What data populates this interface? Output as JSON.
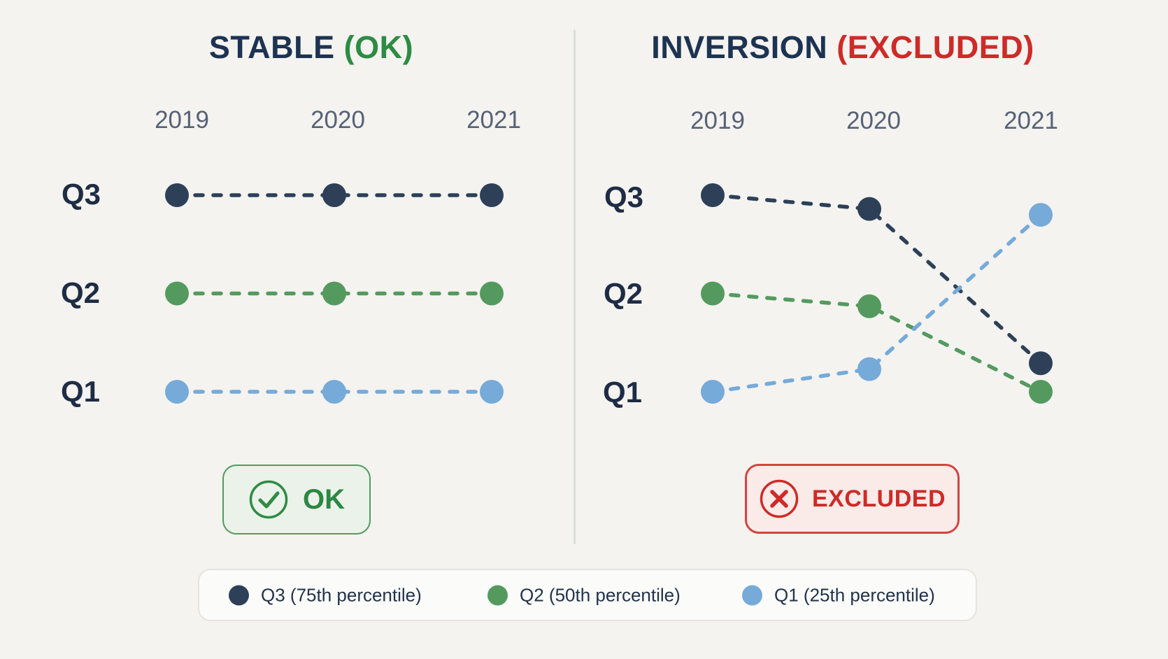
{
  "page": {
    "background": "#f4f3f0",
    "divider_color": "#d9ddd9"
  },
  "panels": [
    {
      "title_main": "STABLE",
      "title_suffix": "(OK)",
      "suffix_color": "#2e8b43",
      "years": [
        "2019",
        "2020",
        "2021"
      ],
      "row_labels": [
        "Q3",
        "Q2",
        "Q1"
      ],
      "badge": {
        "label": "OK",
        "icon": "check-circle-icon",
        "icon_color": "#2f8b43",
        "text_color": "#2c8742",
        "bg": "#eaf2ea",
        "border": "#539a5e"
      }
    },
    {
      "title_main": "INVERSION",
      "title_suffix": "(EXCLUDED)",
      "suffix_color": "#ce2b28",
      "years": [
        "2019",
        "2020",
        "2021"
      ],
      "row_labels": [
        "Q3",
        "Q2",
        "Q1"
      ],
      "badge": {
        "label": "EXCLUDED",
        "icon": "x-circle-icon",
        "icon_color": "#ce2b28",
        "text_color": "#ce2b28",
        "bg": "#faeae8",
        "border": "#d24540"
      }
    }
  ],
  "legend": {
    "items": [
      {
        "label": "Q3 (75th percentile)",
        "color": "#2d4058"
      },
      {
        "label": "Q2 (50th percentile)",
        "color": "#549a5e"
      },
      {
        "label": "Q1 (25th percentile)",
        "color": "#76aad8"
      }
    ]
  },
  "chart_data": [
    {
      "type": "line",
      "title": "STABLE (OK)",
      "x": [
        "2019",
        "2020",
        "2021"
      ],
      "y_categories": [
        "Q1",
        "Q2",
        "Q3"
      ],
      "line_style": "dashed",
      "marker": "circle",
      "legend_position": "bottom",
      "annotation": "OK",
      "series": [
        {
          "name": "Q3 (75th percentile)",
          "color": "#2d4058",
          "levels": [
            3,
            3,
            3
          ]
        },
        {
          "name": "Q2 (50th percentile)",
          "color": "#549a5e",
          "levels": [
            2,
            2,
            2
          ]
        },
        {
          "name": "Q1 (25th percentile)",
          "color": "#76aad8",
          "levels": [
            1,
            1,
            1
          ]
        }
      ]
    },
    {
      "type": "line",
      "title": "INVERSION (EXCLUDED)",
      "x": [
        "2019",
        "2020",
        "2021"
      ],
      "y_categories": [
        "Q1",
        "Q2",
        "Q3"
      ],
      "line_style": "dashed",
      "marker": "circle",
      "legend_position": "bottom",
      "annotation": "EXCLUDED",
      "series": [
        {
          "name": "Q3 (75th percentile)",
          "color": "#2d4058",
          "levels": [
            3,
            2.86,
            1.29
          ]
        },
        {
          "name": "Q2 (50th percentile)",
          "color": "#549a5e",
          "levels": [
            2,
            1.87,
            1.0
          ]
        },
        {
          "name": "Q1 (25th percentile)",
          "color": "#76aad8",
          "levels": [
            1,
            1.23,
            2.8
          ]
        }
      ]
    }
  ]
}
